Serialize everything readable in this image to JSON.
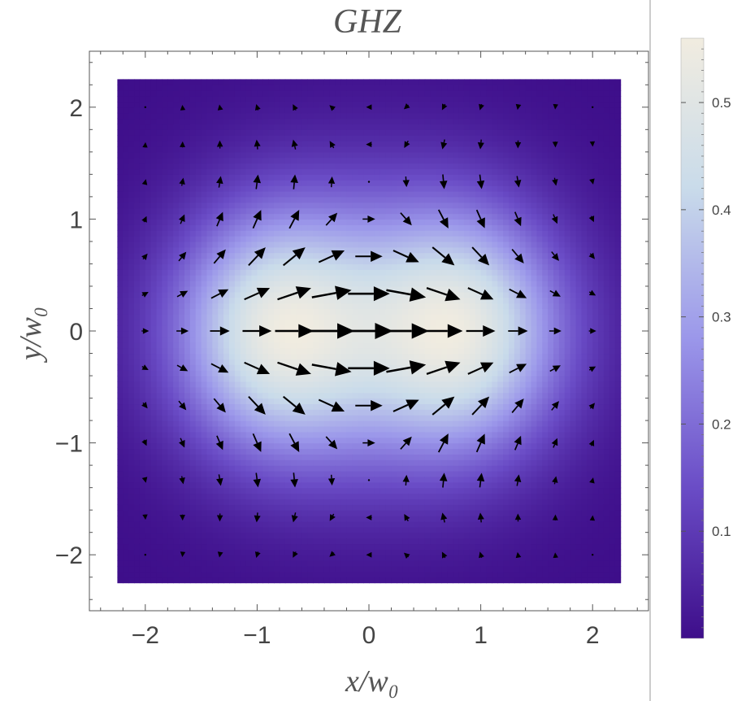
{
  "chart_data": {
    "type": "heatmap",
    "subtype": "density-plot-with-vector-field",
    "title": "GHZ",
    "xlabel": "x/w₀",
    "ylabel": "y/w₀",
    "xlim": [
      -2.5,
      2.5
    ],
    "ylim": [
      -2.5,
      2.5
    ],
    "data_extent": [
      -2.25,
      2.25
    ],
    "x_ticks": [
      -2,
      -1,
      0,
      1,
      2
    ],
    "x_tick_labels": [
      "−2",
      "−1",
      "0",
      "1",
      "2"
    ],
    "y_ticks": [
      -2,
      -1,
      0,
      1,
      2
    ],
    "y_tick_labels": [
      "−2",
      "−1",
      "0",
      "1",
      "2"
    ],
    "field": {
      "description": "intensity proportional to (x^2 + 0.25 y^2) * exp(-(x^2 + y^2)) added to a Gaussian core; vectors point along +x near the center with quadrupole-like tilts",
      "peak_value": 0.56
    },
    "vectors": {
      "grid_x": [
        -2,
        -1.667,
        -1.333,
        -1,
        -0.667,
        -0.333,
        0,
        0.333,
        0.667,
        1,
        1.333,
        1.667,
        2
      ],
      "grid_y": [
        -2,
        -1.667,
        -1.333,
        -1,
        -0.667,
        -0.333,
        0,
        0.333,
        0.667,
        1,
        1.333,
        1.667,
        2
      ],
      "color": "#000000"
    },
    "colorbar": {
      "range": [
        0,
        0.56
      ],
      "ticks": [
        0.1,
        0.2,
        0.3,
        0.4,
        0.5
      ],
      "tick_labels": [
        "0.1",
        "0.2",
        "0.3",
        "0.4",
        "0.5"
      ],
      "colors": [
        "#3e0e8a",
        "#6a4cc6",
        "#9b97ea",
        "#c9dbea",
        "#f1ece0"
      ]
    },
    "grid": false
  }
}
